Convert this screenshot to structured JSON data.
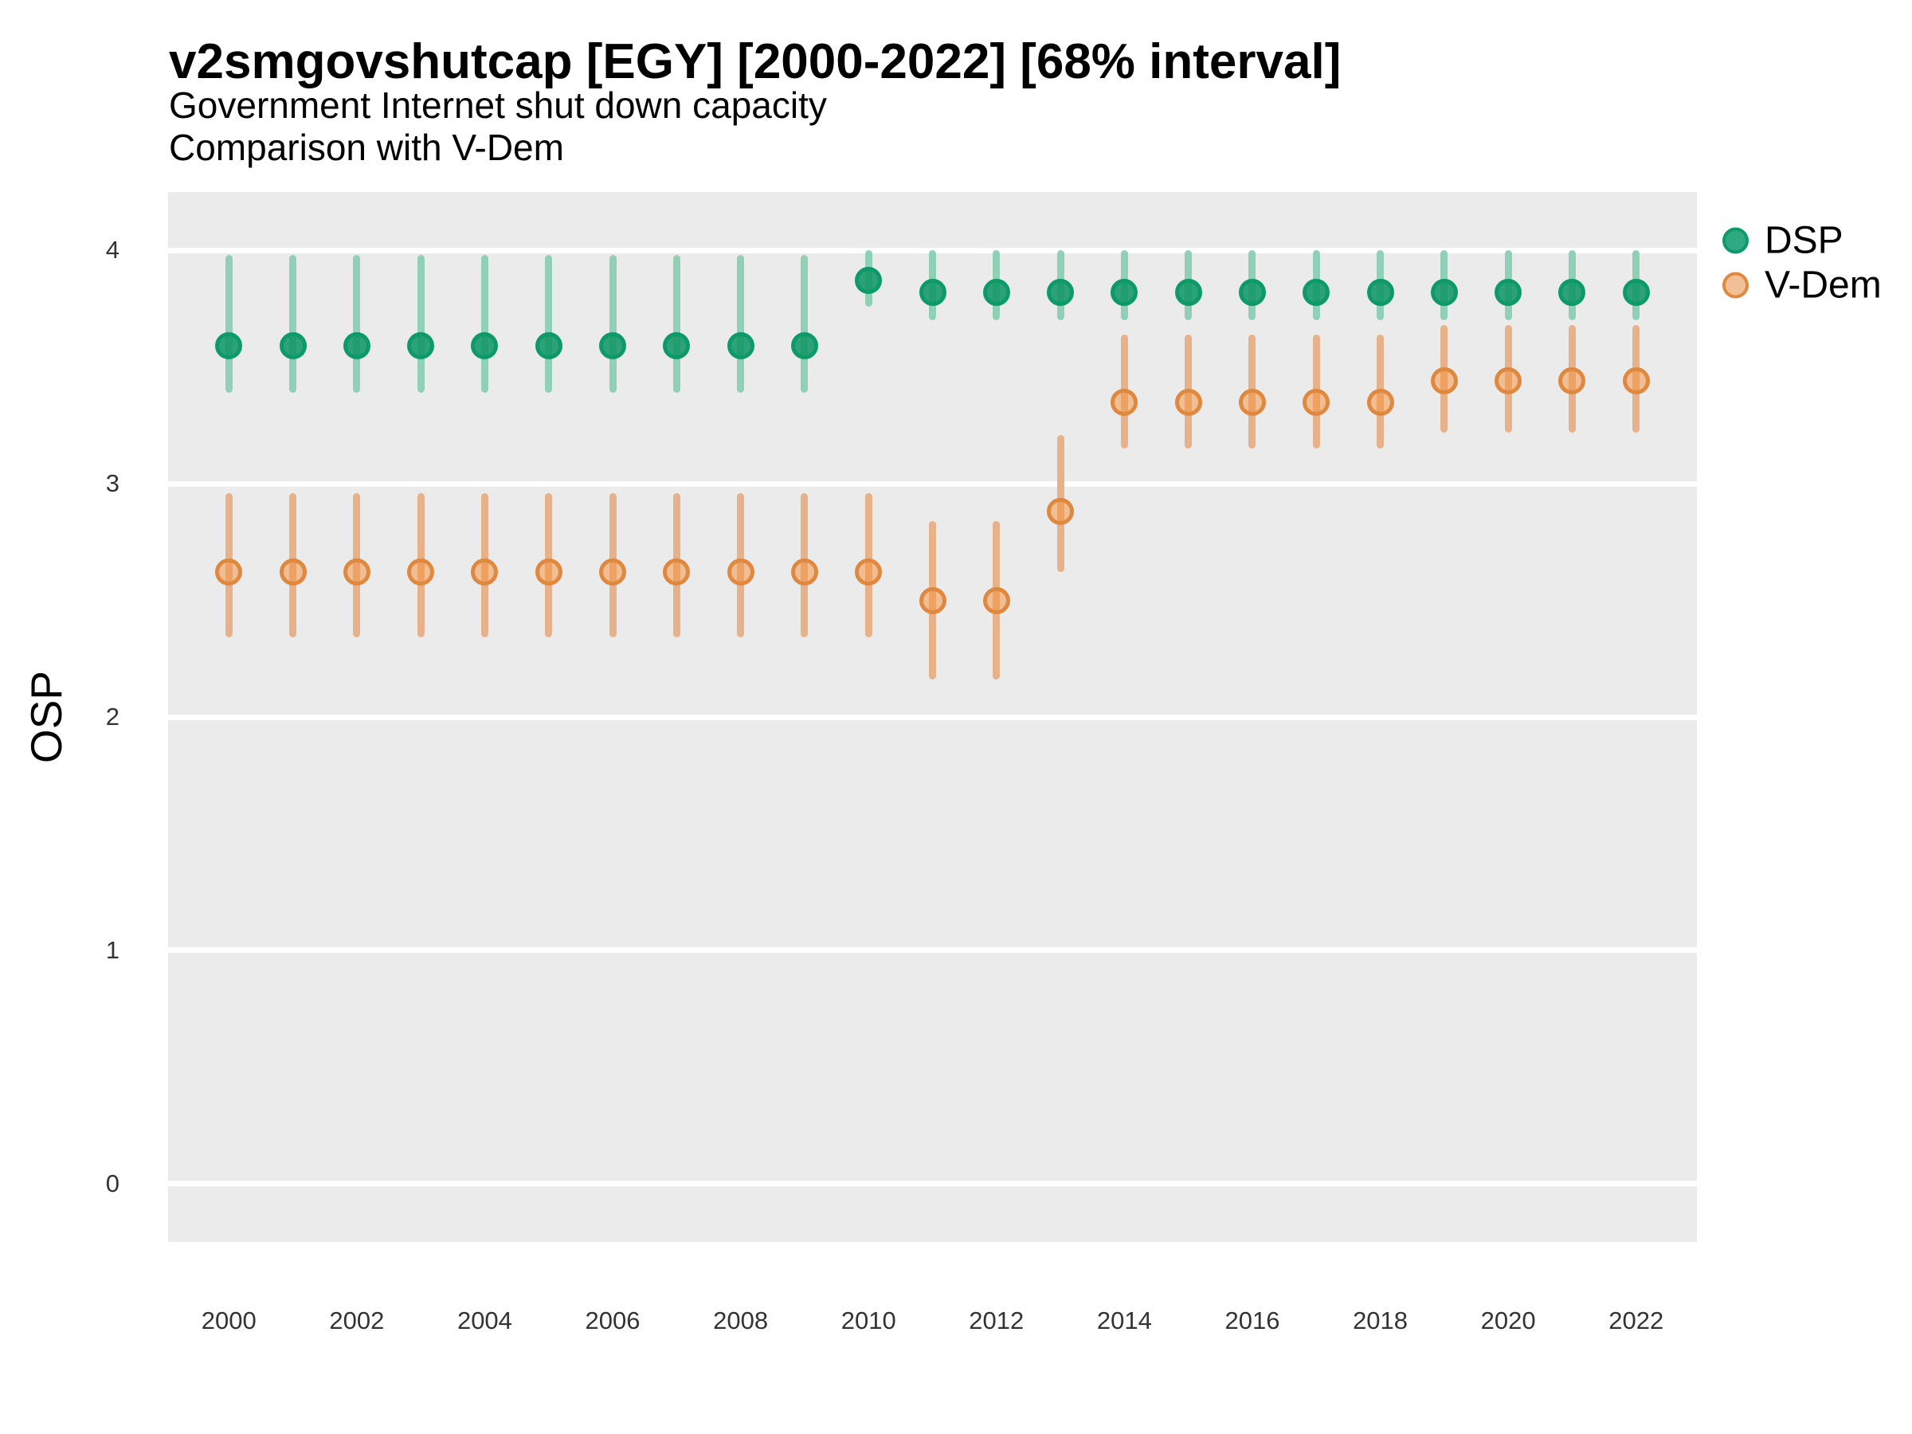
{
  "chart_data": {
    "type": "pointrange-scatter",
    "title": "v2smgovshutcap [EGY] [2000-2022] [68% interval]",
    "subtitle1": "Government Internet shut down capacity",
    "subtitle2": "Comparison with V-Dem",
    "xlabel": "",
    "ylabel": "OSP",
    "interval_label": "68% interval",
    "country": "EGY",
    "xlim": [
      1999.05,
      2022.95
    ],
    "ylim": [
      -0.25,
      4.25
    ],
    "x_ticks": [
      2000,
      2002,
      2004,
      2006,
      2008,
      2010,
      2012,
      2014,
      2016,
      2018,
      2020,
      2022
    ],
    "y_ticks": [
      0,
      1,
      2,
      3,
      4
    ],
    "grid": "major-y-only, white lines on gray panel",
    "legend_position": "top-right outside panel",
    "panel_bg": "#ebebeb",
    "grid_color": "#ffffff",
    "series": [
      {
        "id": "dsp",
        "name": "DSP",
        "point_fill": "rgba(18,150,103,0.88)",
        "point_stroke": "#0d9a6b",
        "bar_color": "#8fd0b7",
        "legend_fill": "#2fa982",
        "points": [
          {
            "year": 2000,
            "est": 3.59,
            "lo": 3.39,
            "hi": 3.98
          },
          {
            "year": 2001,
            "est": 3.59,
            "lo": 3.39,
            "hi": 3.98
          },
          {
            "year": 2002,
            "est": 3.59,
            "lo": 3.39,
            "hi": 3.98
          },
          {
            "year": 2003,
            "est": 3.59,
            "lo": 3.39,
            "hi": 3.98
          },
          {
            "year": 2004,
            "est": 3.59,
            "lo": 3.39,
            "hi": 3.98
          },
          {
            "year": 2005,
            "est": 3.59,
            "lo": 3.39,
            "hi": 3.98
          },
          {
            "year": 2006,
            "est": 3.59,
            "lo": 3.39,
            "hi": 3.98
          },
          {
            "year": 2007,
            "est": 3.59,
            "lo": 3.39,
            "hi": 3.98
          },
          {
            "year": 2008,
            "est": 3.59,
            "lo": 3.39,
            "hi": 3.98
          },
          {
            "year": 2009,
            "est": 3.59,
            "lo": 3.39,
            "hi": 3.98
          },
          {
            "year": 2010,
            "est": 3.87,
            "lo": 3.76,
            "hi": 4.0
          },
          {
            "year": 2011,
            "est": 3.82,
            "lo": 3.7,
            "hi": 4.0
          },
          {
            "year": 2012,
            "est": 3.82,
            "lo": 3.7,
            "hi": 4.0
          },
          {
            "year": 2013,
            "est": 3.82,
            "lo": 3.7,
            "hi": 4.0
          },
          {
            "year": 2014,
            "est": 3.82,
            "lo": 3.7,
            "hi": 4.0
          },
          {
            "year": 2015,
            "est": 3.82,
            "lo": 3.7,
            "hi": 4.0
          },
          {
            "year": 2016,
            "est": 3.82,
            "lo": 3.7,
            "hi": 4.0
          },
          {
            "year": 2017,
            "est": 3.82,
            "lo": 3.7,
            "hi": 4.0
          },
          {
            "year": 2018,
            "est": 3.82,
            "lo": 3.7,
            "hi": 4.0
          },
          {
            "year": 2019,
            "est": 3.82,
            "lo": 3.7,
            "hi": 4.0
          },
          {
            "year": 2020,
            "est": 3.82,
            "lo": 3.7,
            "hi": 4.0
          },
          {
            "year": 2021,
            "est": 3.82,
            "lo": 3.7,
            "hi": 4.0
          },
          {
            "year": 2022,
            "est": 3.82,
            "lo": 3.7,
            "hi": 4.0
          }
        ]
      },
      {
        "id": "vdem",
        "name": "V-Dem",
        "point_fill": "rgba(247,143,57,0.5)",
        "point_stroke": "#df8840",
        "bar_color": "#e7b28a",
        "legend_fill": "#f2c096",
        "points": [
          {
            "year": 2000,
            "est": 2.62,
            "lo": 2.34,
            "hi": 2.96
          },
          {
            "year": 2001,
            "est": 2.62,
            "lo": 2.34,
            "hi": 2.96
          },
          {
            "year": 2002,
            "est": 2.62,
            "lo": 2.34,
            "hi": 2.96
          },
          {
            "year": 2003,
            "est": 2.62,
            "lo": 2.34,
            "hi": 2.96
          },
          {
            "year": 2004,
            "est": 2.62,
            "lo": 2.34,
            "hi": 2.96
          },
          {
            "year": 2005,
            "est": 2.62,
            "lo": 2.34,
            "hi": 2.96
          },
          {
            "year": 2006,
            "est": 2.62,
            "lo": 2.34,
            "hi": 2.96
          },
          {
            "year": 2007,
            "est": 2.62,
            "lo": 2.34,
            "hi": 2.96
          },
          {
            "year": 2008,
            "est": 2.62,
            "lo": 2.34,
            "hi": 2.96
          },
          {
            "year": 2009,
            "est": 2.62,
            "lo": 2.34,
            "hi": 2.96
          },
          {
            "year": 2010,
            "est": 2.62,
            "lo": 2.34,
            "hi": 2.96
          },
          {
            "year": 2011,
            "est": 2.5,
            "lo": 2.16,
            "hi": 2.84
          },
          {
            "year": 2012,
            "est": 2.5,
            "lo": 2.16,
            "hi": 2.84
          },
          {
            "year": 2013,
            "est": 2.88,
            "lo": 2.62,
            "hi": 3.21
          },
          {
            "year": 2014,
            "est": 3.35,
            "lo": 3.15,
            "hi": 3.64
          },
          {
            "year": 2015,
            "est": 3.35,
            "lo": 3.15,
            "hi": 3.64
          },
          {
            "year": 2016,
            "est": 3.35,
            "lo": 3.15,
            "hi": 3.64
          },
          {
            "year": 2017,
            "est": 3.35,
            "lo": 3.15,
            "hi": 3.64
          },
          {
            "year": 2018,
            "est": 3.35,
            "lo": 3.15,
            "hi": 3.64
          },
          {
            "year": 2019,
            "est": 3.44,
            "lo": 3.22,
            "hi": 3.68
          },
          {
            "year": 2020,
            "est": 3.44,
            "lo": 3.22,
            "hi": 3.68
          },
          {
            "year": 2021,
            "est": 3.44,
            "lo": 3.22,
            "hi": 3.68
          },
          {
            "year": 2022,
            "est": 3.44,
            "lo": 3.22,
            "hi": 3.68
          }
        ]
      }
    ]
  }
}
